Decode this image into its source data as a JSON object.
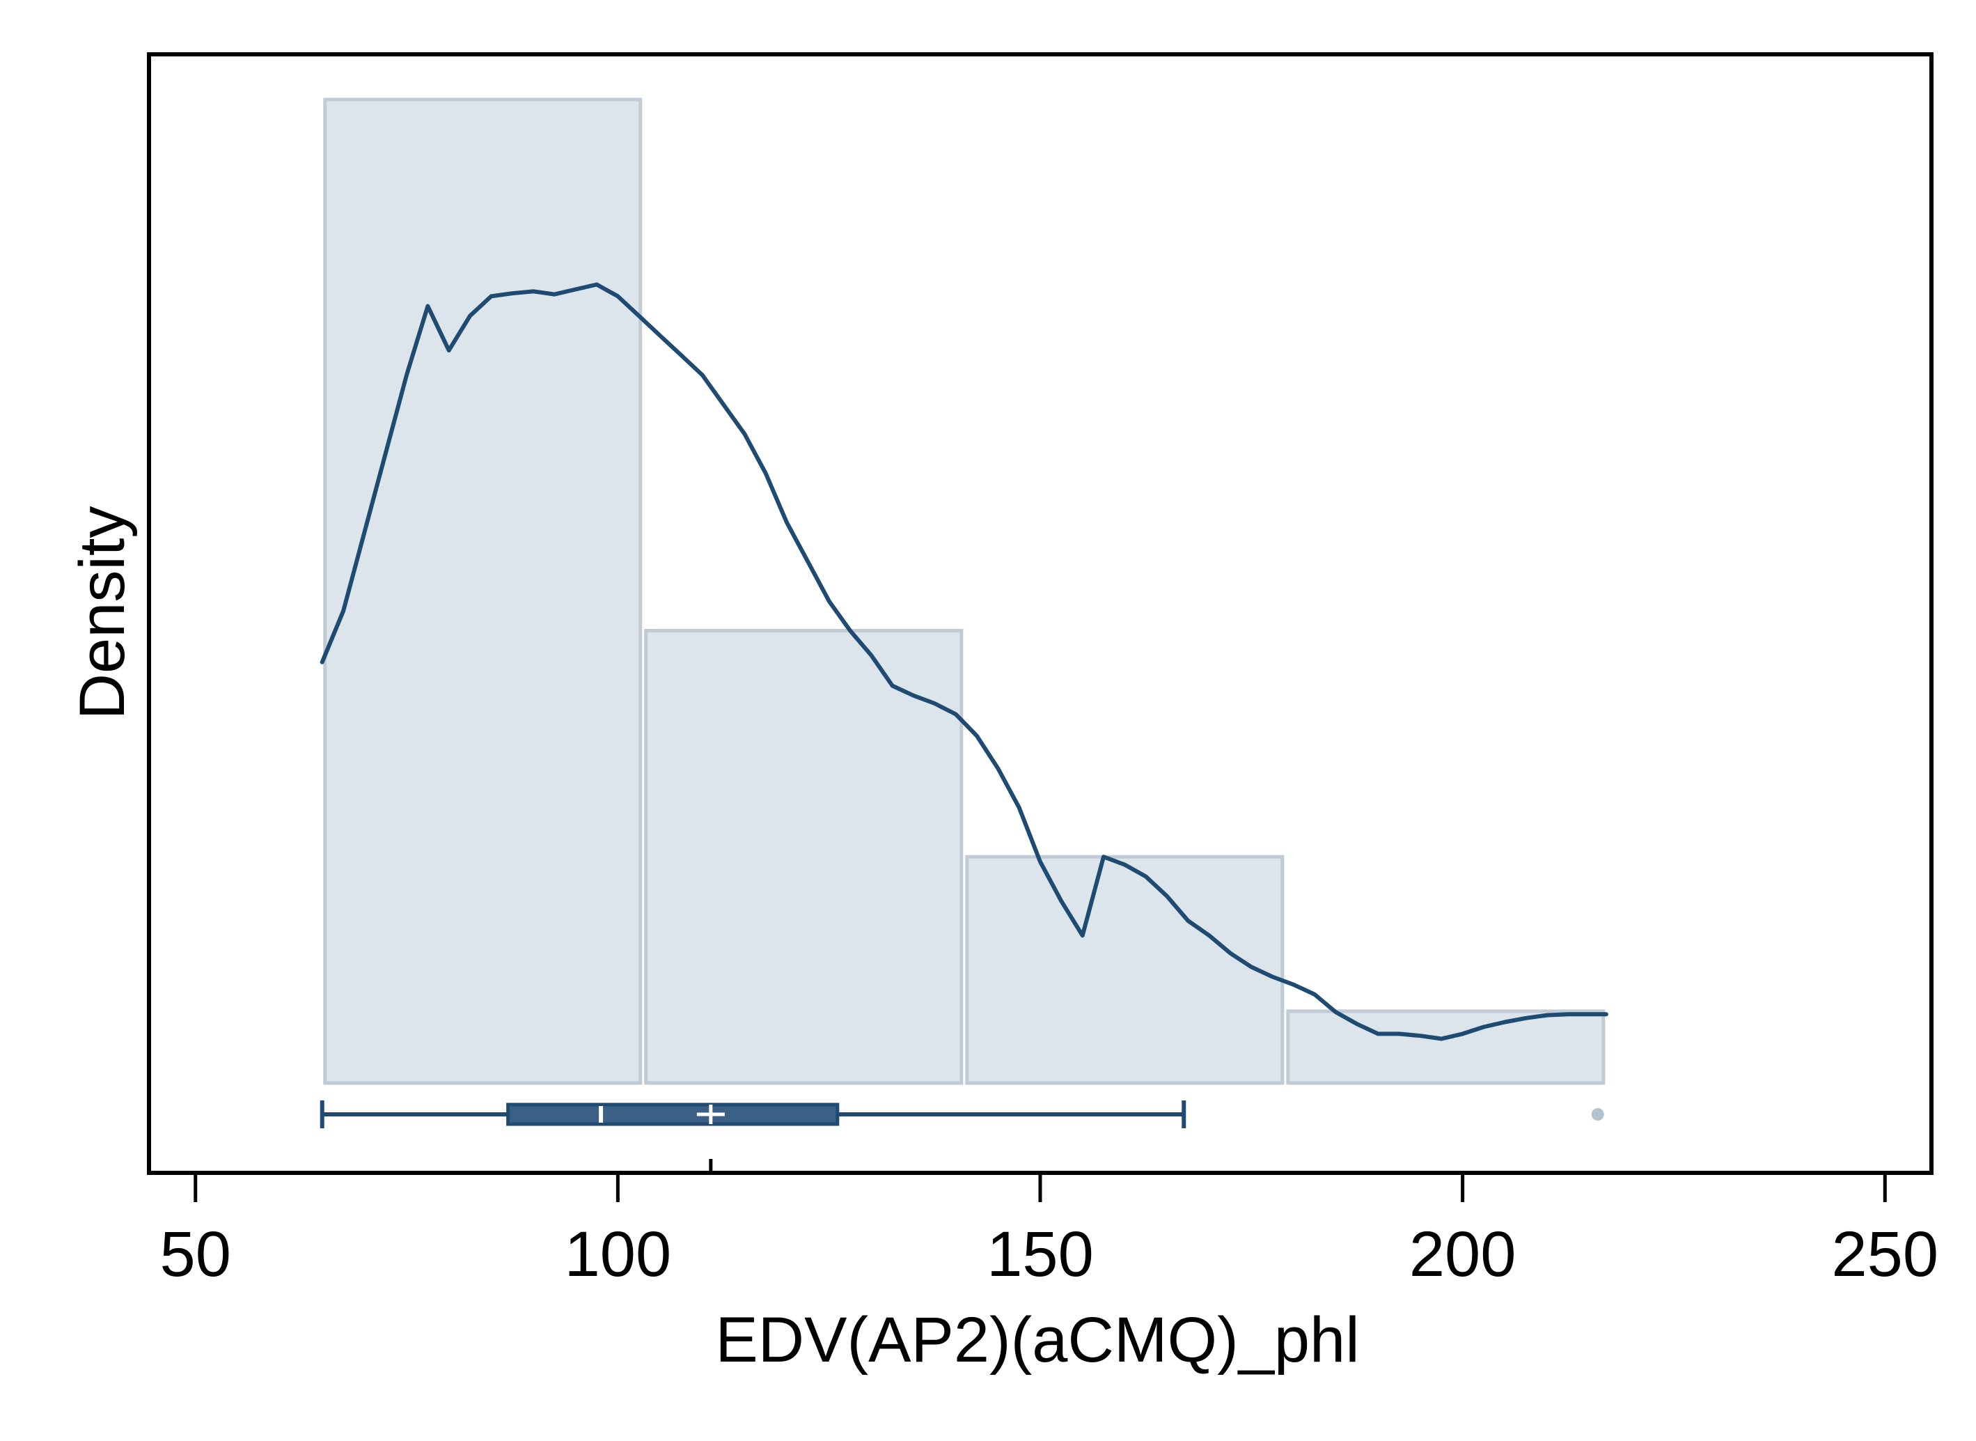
{
  "chart_data": {
    "type": "histogram",
    "xlabel": "EDV(AP2)(aCMQ)_phl",
    "ylabel": "Density",
    "xlim": [
      44.5,
      255.5
    ],
    "x_ticks": [
      50,
      100,
      150,
      200,
      250
    ],
    "x_tick_labels": [
      "50",
      "100",
      "150",
      "200",
      "250"
    ],
    "bins": [
      {
        "start": 65,
        "end": 103,
        "height": 1.0
      },
      {
        "start": 103,
        "end": 141,
        "height": 0.46
      },
      {
        "start": 141,
        "end": 179,
        "height": 0.23
      },
      {
        "start": 179,
        "end": 217,
        "height": 0.073
      }
    ],
    "density_curve": [
      [
        65,
        0.428
      ],
      [
        67.5,
        0.48
      ],
      [
        70,
        0.56
      ],
      [
        72.5,
        0.64
      ],
      [
        75,
        0.72
      ],
      [
        77.5,
        0.79
      ],
      [
        80,
        0.745
      ],
      [
        82.5,
        0.78
      ],
      [
        85,
        0.8
      ],
      [
        87.5,
        0.803
      ],
      [
        90,
        0.805
      ],
      [
        92.5,
        0.802
      ],
      [
        95,
        0.807
      ],
      [
        97.5,
        0.812
      ],
      [
        100,
        0.8
      ],
      [
        102.5,
        0.78
      ],
      [
        105,
        0.76
      ],
      [
        107.5,
        0.74
      ],
      [
        110,
        0.72
      ],
      [
        112.5,
        0.69
      ],
      [
        115,
        0.66
      ],
      [
        117.5,
        0.62
      ],
      [
        120,
        0.57
      ],
      [
        122.5,
        0.53
      ],
      [
        125,
        0.49
      ],
      [
        127.5,
        0.46
      ],
      [
        130,
        0.435
      ],
      [
        132.5,
        0.404
      ],
      [
        135,
        0.394
      ],
      [
        137.5,
        0.386
      ],
      [
        140,
        0.375
      ],
      [
        142.5,
        0.353
      ],
      [
        145,
        0.32
      ],
      [
        147.5,
        0.28
      ],
      [
        150,
        0.225
      ],
      [
        152.5,
        0.185
      ],
      [
        155,
        0.15
      ],
      [
        157.5,
        0.23
      ],
      [
        160,
        0.222
      ],
      [
        162.5,
        0.21
      ],
      [
        165,
        0.19
      ],
      [
        167.5,
        0.165
      ],
      [
        170,
        0.15
      ],
      [
        172.5,
        0.132
      ],
      [
        175,
        0.118
      ],
      [
        177.5,
        0.108
      ],
      [
        180,
        0.1
      ],
      [
        182.5,
        0.09
      ],
      [
        185,
        0.072
      ],
      [
        187.5,
        0.06
      ],
      [
        190,
        0.05
      ],
      [
        192.5,
        0.05
      ],
      [
        195,
        0.048
      ],
      [
        197.5,
        0.045
      ],
      [
        200,
        0.05
      ],
      [
        202.5,
        0.057
      ],
      [
        205,
        0.062
      ],
      [
        207.5,
        0.066
      ],
      [
        210,
        0.069
      ],
      [
        212.5,
        0.07
      ],
      [
        215,
        0.07
      ],
      [
        217,
        0.07
      ]
    ],
    "boxplot": {
      "min": 65,
      "q1": 87,
      "median": 98,
      "mean": 111,
      "q3": 126,
      "max": 167,
      "outliers": [
        216
      ]
    },
    "colors": {
      "bar_fill": "#dce4ec",
      "bar_stroke": "#c0cbd6",
      "line": "#1f4a72",
      "box_fill": "#3b5f85",
      "outlier": "#b4c2d0"
    },
    "grid": false
  }
}
